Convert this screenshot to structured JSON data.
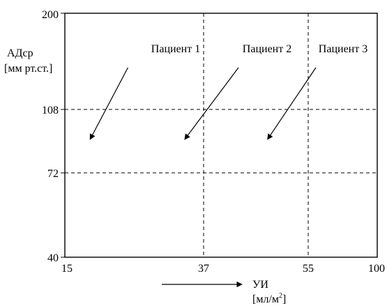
{
  "chart_data": {
    "type": "line",
    "title": "",
    "ylabel": "АДср",
    "ylabel_unit": "[мм рт.ст.]",
    "xlabel": "УИ",
    "xlabel_unit_base": "[мл/м",
    "xlabel_unit_sup": "2",
    "xlabel_unit_end": "]",
    "x_ticks": [
      "15",
      "37",
      "55",
      "100"
    ],
    "y_ticks": [
      "200",
      "108",
      "72",
      "40"
    ],
    "x_dividers": [
      37,
      55
    ],
    "y_dividers": [
      108,
      72
    ],
    "grid": false,
    "arrows": [
      {
        "label": "Пациент 1",
        "start_x": 25,
        "start_y": 148,
        "end_x": 19,
        "end_y": 91
      },
      {
        "label": "Пациент 2",
        "start_x": 43,
        "start_y": 148,
        "end_x": 34,
        "end_y": 91
      },
      {
        "label": "Пациент 3",
        "start_x": 60,
        "start_y": 148,
        "end_x": 48,
        "end_y": 91
      }
    ]
  }
}
